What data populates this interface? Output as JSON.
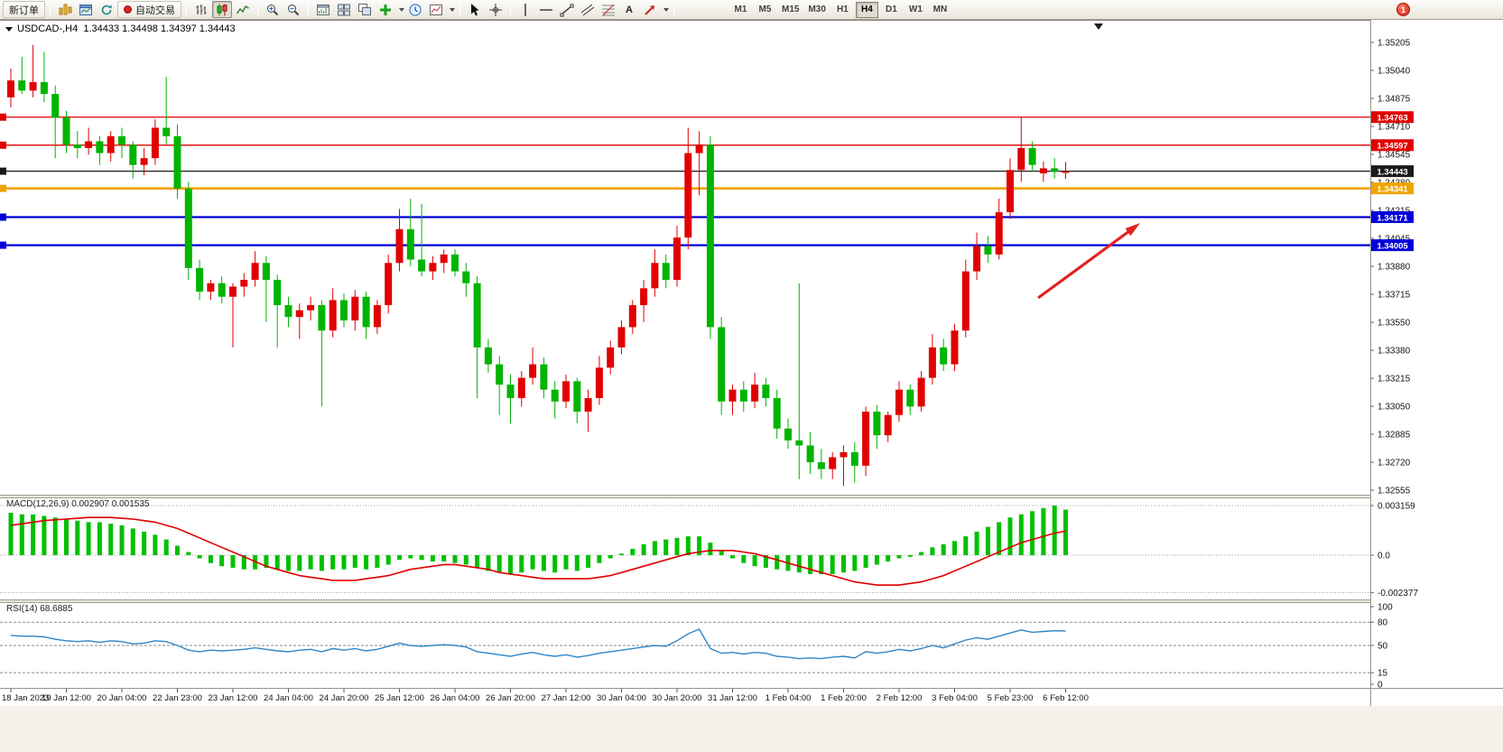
{
  "toolbar": {
    "new_order_label": "新订单",
    "auto_trading_label": "自动交易",
    "text_tool_label": "A",
    "timeframes": [
      "M1",
      "M5",
      "M15",
      "M30",
      "H1",
      "H4",
      "D1",
      "W1",
      "MN"
    ],
    "active_timeframe": "H4",
    "badge": "1"
  },
  "chart_data": {
    "type": "candlestick",
    "symbol": "USDCAD-",
    "timeframe": "H4",
    "symbol_line": "USDCAD-,H4  1.34433 1.34498 1.34397 1.34443",
    "ohlc_current": {
      "open": "1.34433",
      "high": "1.34498",
      "low": "1.34397",
      "close": "1.34443"
    },
    "price_max": 1.35205,
    "price_min": 1.32555,
    "bull_color": "#e00000",
    "bear_color": "#00b400",
    "arrow_color": "#e42222",
    "y_axis_labels": [
      "1.35205",
      "1.35040",
      "1.34875",
      "1.34710",
      "1.34545",
      "1.34380",
      "1.34215",
      "1.34045",
      "1.33880",
      "1.33715",
      "1.33550",
      "1.33380",
      "1.33215",
      "1.33050",
      "1.32885",
      "1.32720",
      "1.32555"
    ],
    "hlines": [
      {
        "price": 1.34763,
        "label": "1.34763",
        "color": "#e00000",
        "width": 1.3
      },
      {
        "price": 1.34597,
        "label": "1.34597",
        "color": "#e00000",
        "width": 1.3
      },
      {
        "price": 1.34443,
        "label": "1.34443",
        "color": "#1a1a1a",
        "width": 1.2
      },
      {
        "price": 1.34341,
        "label": "1.34341",
        "color": "#f0a400",
        "width": 2.6
      },
      {
        "price": 1.34171,
        "label": "1.34171",
        "color": "#0000d8",
        "width": 2.2
      },
      {
        "price": 1.34005,
        "label": "1.34005",
        "color": "#0000d8",
        "width": 2.2
      }
    ],
    "x_labels": [
      "18 Jan 2023",
      "19 Jan 12:00",
      "20 Jan 04:00",
      "22 Jan 23:00",
      "23 Jan 12:00",
      "24 Jan 04:00",
      "24 Jan 20:00",
      "25 Jan 12:00",
      "26 Jan 04:00",
      "26 Jan 20:00",
      "27 Jan 12:00",
      "30 Jan 04:00",
      "30 Jan 20:00",
      "31 Jan 12:00",
      "1 Feb 04:00",
      "1 Feb 20:00",
      "2 Feb 12:00",
      "3 Feb 04:00",
      "5 Feb 23:00",
      "6 Feb 12:00"
    ],
    "candles": [
      [
        1.3488,
        1.3505,
        1.3482,
        1.3498
      ],
      [
        1.3498,
        1.3512,
        1.349,
        1.3492
      ],
      [
        1.3492,
        1.3519,
        1.3488,
        1.3497
      ],
      [
        1.3497,
        1.3515,
        1.3485,
        1.349
      ],
      [
        1.349,
        1.3495,
        1.3452,
        1.3476
      ],
      [
        1.3476,
        1.348,
        1.3455,
        1.346
      ],
      [
        1.346,
        1.3468,
        1.3452,
        1.3458
      ],
      [
        1.3458,
        1.347,
        1.3454,
        1.3462
      ],
      [
        1.3462,
        1.3465,
        1.3448,
        1.3455
      ],
      [
        1.3455,
        1.3468,
        1.345,
        1.3465
      ],
      [
        1.3465,
        1.347,
        1.3452,
        1.346
      ],
      [
        1.346,
        1.3462,
        1.344,
        1.3448
      ],
      [
        1.3448,
        1.3458,
        1.3442,
        1.3452
      ],
      [
        1.3452,
        1.3475,
        1.3448,
        1.347
      ],
      [
        1.347,
        1.35,
        1.346,
        1.3465
      ],
      [
        1.3465,
        1.3472,
        1.3428,
        1.3434
      ],
      [
        1.3434,
        1.3438,
        1.338,
        1.3387
      ],
      [
        1.3387,
        1.3392,
        1.3368,
        1.3373
      ],
      [
        1.3373,
        1.338,
        1.3368,
        1.3378
      ],
      [
        1.3378,
        1.3382,
        1.3366,
        1.337
      ],
      [
        1.337,
        1.3378,
        1.334,
        1.3376
      ],
      [
        1.3376,
        1.3384,
        1.337,
        1.338
      ],
      [
        1.338,
        1.3397,
        1.3376,
        1.339
      ],
      [
        1.339,
        1.3394,
        1.3355,
        1.338
      ],
      [
        1.338,
        1.3383,
        1.334,
        1.3365
      ],
      [
        1.3365,
        1.337,
        1.3352,
        1.3358
      ],
      [
        1.3358,
        1.3366,
        1.3345,
        1.3362
      ],
      [
        1.3362,
        1.337,
        1.3356,
        1.3365
      ],
      [
        1.3365,
        1.3368,
        1.3305,
        1.335
      ],
      [
        1.335,
        1.3375,
        1.3346,
        1.3368
      ],
      [
        1.3368,
        1.3372,
        1.3352,
        1.3356
      ],
      [
        1.3356,
        1.3374,
        1.335,
        1.337
      ],
      [
        1.337,
        1.3373,
        1.3345,
        1.3352
      ],
      [
        1.3352,
        1.3368,
        1.3348,
        1.3365
      ],
      [
        1.3365,
        1.3395,
        1.336,
        1.339
      ],
      [
        1.339,
        1.3422,
        1.3385,
        1.341
      ],
      [
        1.341,
        1.3428,
        1.3388,
        1.3392
      ],
      [
        1.3392,
        1.3425,
        1.3382,
        1.3385
      ],
      [
        1.3385,
        1.3394,
        1.338,
        1.339
      ],
      [
        1.339,
        1.3398,
        1.3384,
        1.3395
      ],
      [
        1.3395,
        1.3398,
        1.3382,
        1.3385
      ],
      [
        1.3385,
        1.339,
        1.337,
        1.3378
      ],
      [
        1.3378,
        1.3382,
        1.331,
        1.334
      ],
      [
        1.334,
        1.3345,
        1.3325,
        1.333
      ],
      [
        1.333,
        1.3335,
        1.33,
        1.3318
      ],
      [
        1.3318,
        1.3324,
        1.3295,
        1.331
      ],
      [
        1.331,
        1.3326,
        1.3305,
        1.3322
      ],
      [
        1.3322,
        1.334,
        1.3318,
        1.333
      ],
      [
        1.333,
        1.3334,
        1.331,
        1.3315
      ],
      [
        1.3315,
        1.332,
        1.3298,
        1.3308
      ],
      [
        1.3308,
        1.3324,
        1.3304,
        1.332
      ],
      [
        1.332,
        1.3322,
        1.3295,
        1.3302
      ],
      [
        1.3302,
        1.3315,
        1.329,
        1.331
      ],
      [
        1.331,
        1.3335,
        1.3306,
        1.3328
      ],
      [
        1.3328,
        1.3344,
        1.3324,
        1.334
      ],
      [
        1.334,
        1.3356,
        1.3336,
        1.3352
      ],
      [
        1.3352,
        1.3368,
        1.3348,
        1.3365
      ],
      [
        1.3365,
        1.338,
        1.3355,
        1.3375
      ],
      [
        1.3375,
        1.3398,
        1.337,
        1.339
      ],
      [
        1.339,
        1.3395,
        1.3375,
        1.338
      ],
      [
        1.338,
        1.3412,
        1.3376,
        1.3405
      ],
      [
        1.3405,
        1.347,
        1.3398,
        1.3455
      ],
      [
        1.3455,
        1.3468,
        1.343,
        1.346
      ],
      [
        1.346,
        1.3465,
        1.3345,
        1.3352
      ],
      [
        1.3352,
        1.3358,
        1.33,
        1.3308
      ],
      [
        1.3308,
        1.3318,
        1.33,
        1.3315
      ],
      [
        1.3315,
        1.332,
        1.3302,
        1.3308
      ],
      [
        1.3308,
        1.3325,
        1.3304,
        1.3318
      ],
      [
        1.3318,
        1.3322,
        1.3305,
        1.331
      ],
      [
        1.331,
        1.3315,
        1.3286,
        1.3292
      ],
      [
        1.3292,
        1.3298,
        1.328,
        1.3285
      ],
      [
        1.3285,
        1.3378,
        1.3262,
        1.3282
      ],
      [
        1.3282,
        1.329,
        1.3265,
        1.3272
      ],
      [
        1.3272,
        1.328,
        1.3262,
        1.3268
      ],
      [
        1.3268,
        1.3278,
        1.3262,
        1.3275
      ],
      [
        1.3275,
        1.3282,
        1.3258,
        1.3278
      ],
      [
        1.3278,
        1.3284,
        1.326,
        1.327
      ],
      [
        1.327,
        1.3305,
        1.3264,
        1.3302
      ],
      [
        1.3302,
        1.3306,
        1.328,
        1.3288
      ],
      [
        1.3288,
        1.3302,
        1.3284,
        1.33
      ],
      [
        1.33,
        1.332,
        1.3296,
        1.3315
      ],
      [
        1.3315,
        1.3318,
        1.33,
        1.3305
      ],
      [
        1.3305,
        1.3326,
        1.3302,
        1.3322
      ],
      [
        1.3322,
        1.3348,
        1.3318,
        1.334
      ],
      [
        1.334,
        1.3345,
        1.3326,
        1.333
      ],
      [
        1.333,
        1.3354,
        1.3326,
        1.335
      ],
      [
        1.335,
        1.3392,
        1.3346,
        1.3385
      ],
      [
        1.3385,
        1.3408,
        1.338,
        1.34
      ],
      [
        1.34,
        1.3406,
        1.339,
        1.3395
      ],
      [
        1.3395,
        1.3428,
        1.3392,
        1.342
      ],
      [
        1.342,
        1.3452,
        1.3416,
        1.3445
      ],
      [
        1.3445,
        1.3476,
        1.3438,
        1.3458
      ],
      [
        1.3458,
        1.3462,
        1.3444,
        1.3448
      ],
      [
        1.3443,
        1.345,
        1.3438,
        1.3446
      ],
      [
        1.3446,
        1.3452,
        1.344,
        1.3444
      ],
      [
        1.34433,
        1.34498,
        1.34397,
        1.34443
      ]
    ],
    "macd": {
      "title": "MACD(12,26,9) 0.002907 0.001535",
      "axis": [
        "0.003159",
        "0.0",
        "-0.002377"
      ],
      "axis_values": [
        0.003159,
        0,
        -0.002377
      ],
      "hist_color": "#00c000",
      "signal_color": "#e00000",
      "hist": [
        0.0027,
        0.0026,
        0.0026,
        0.0025,
        0.0024,
        0.0023,
        0.0022,
        0.0021,
        0.0021,
        0.002,
        0.0019,
        0.0017,
        0.0015,
        0.0013,
        0.001,
        0.0006,
        0.0002,
        -0.0002,
        -0.0005,
        -0.0007,
        -0.0008,
        -0.0009,
        -0.0009,
        -0.0008,
        -0.0009,
        -0.001,
        -0.001,
        -0.0009,
        -0.001,
        -0.0009,
        -0.0009,
        -0.0008,
        -0.0009,
        -0.0008,
        -0.0006,
        -0.0003,
        -0.0002,
        -0.0003,
        -0.0004,
        -0.0004,
        -0.0005,
        -0.0006,
        -0.0008,
        -0.001,
        -0.0011,
        -0.0012,
        -0.0011,
        -0.0009,
        -0.001,
        -0.0011,
        -0.0009,
        -0.001,
        -0.0008,
        -0.0005,
        -0.0002,
        0.0001,
        0.0004,
        0.0007,
        0.0009,
        0.001,
        0.0011,
        0.0012,
        0.0012,
        0.0008,
        0.0003,
        -0.0002,
        -0.0005,
        -0.0007,
        -0.0008,
        -0.0009,
        -0.001,
        -0.0011,
        -0.0012,
        -0.0012,
        -0.0012,
        -0.0011,
        -0.001,
        -0.0008,
        -0.0006,
        -0.0004,
        -0.0002,
        -0.0001,
        0.0002,
        0.0005,
        0.0007,
        0.0009,
        0.0012,
        0.0015,
        0.0018,
        0.0021,
        0.0024,
        0.0026,
        0.0028,
        0.003,
        0.00316,
        0.0029
      ],
      "signal": [
        0.0019,
        0.002,
        0.0021,
        0.0022,
        0.00225,
        0.0023,
        0.00235,
        0.0024,
        0.0024,
        0.0024,
        0.00235,
        0.0023,
        0.0022,
        0.0021,
        0.0019,
        0.0017,
        0.0014,
        0.0011,
        0.0008,
        0.0005,
        0.0002,
        -0.0001,
        -0.0004,
        -0.0007,
        -0.0009,
        -0.0011,
        -0.0013,
        -0.0014,
        -0.0015,
        -0.0016,
        -0.0016,
        -0.0016,
        -0.0015,
        -0.0014,
        -0.0013,
        -0.0011,
        -0.0009,
        -0.0008,
        -0.0007,
        -0.0006,
        -0.0006,
        -0.0007,
        -0.0008,
        -0.0009,
        -0.0011,
        -0.0012,
        -0.0013,
        -0.0014,
        -0.0015,
        -0.0015,
        -0.0015,
        -0.0015,
        -0.0015,
        -0.0014,
        -0.0013,
        -0.0011,
        -0.0009,
        -0.0007,
        -0.0005,
        -0.0003,
        -0.0001,
        0.0001,
        0.0002,
        0.0003,
        0.0003,
        0.0003,
        0.0002,
        0.0001,
        -0.0001,
        -0.0003,
        -0.0005,
        -0.0007,
        -0.0009,
        -0.0011,
        -0.0013,
        -0.0015,
        -0.0017,
        -0.0018,
        -0.0019,
        -0.0019,
        -0.0019,
        -0.0018,
        -0.0017,
        -0.0015,
        -0.0013,
        -0.001,
        -0.0007,
        -0.0004,
        -0.0001,
        0.0002,
        0.0005,
        0.0008,
        0.001,
        0.0012,
        0.0014,
        0.001535
      ]
    },
    "rsi": {
      "title": "RSI(14) 68.6885",
      "line_color": "#2f86c8",
      "levels": [
        {
          "label": "100",
          "value": 100,
          "dashed": false
        },
        {
          "label": "80",
          "value": 80,
          "dashed": true
        },
        {
          "label": "50",
          "value": 50,
          "dashed": true
        },
        {
          "label": "15",
          "value": 15,
          "dashed": true
        },
        {
          "label": "0",
          "value": 0,
          "dashed": false
        }
      ],
      "values": [
        63,
        62,
        62,
        61,
        58,
        56,
        55,
        56,
        54,
        56,
        55,
        52,
        53,
        56,
        55,
        50,
        44,
        42,
        44,
        43,
        44,
        45,
        47,
        45,
        43,
        42,
        44,
        45,
        42,
        46,
        44,
        46,
        43,
        45,
        49,
        53,
        50,
        49,
        50,
        51,
        50,
        48,
        42,
        40,
        38,
        36,
        39,
        41,
        38,
        36,
        38,
        35,
        37,
        40,
        42,
        44,
        46,
        48,
        50,
        49,
        56,
        65,
        71,
        46,
        40,
        41,
        39,
        41,
        40,
        36,
        35,
        33,
        34,
        33,
        35,
        36,
        34,
        42,
        40,
        42,
        45,
        43,
        46,
        50,
        47,
        52,
        57,
        60,
        58,
        62,
        66,
        70,
        67,
        68,
        69,
        68.7
      ]
    }
  }
}
